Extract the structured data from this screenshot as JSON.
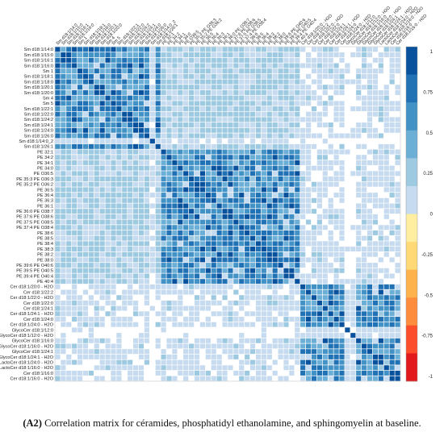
{
  "chart_data": {
    "type": "heatmap",
    "title": "",
    "labels": [
      "Sm d18:1/14:0",
      "Sm d18:1/15:0",
      "Sm d18:1/16:1",
      "Sm d18:1/16:0",
      "Sm 1",
      "Sm d18:1/18:1",
      "Sm d18:1/18:0",
      "Sm d18:1/20:1",
      "Sm d18:1/20:0",
      "Sm 4",
      "Sm 5",
      "Sm d18:1/22:1",
      "Sm d18:1/22:0",
      "Sm d18:1/24:2",
      "Sm d18:1/24:1",
      "Sm d18:1/24:0",
      "Sm d18:1/26:0",
      "Sm d18:1/14:0_2",
      "Sm d18:1/26:1",
      "PE 32:1",
      "PE 34:2",
      "PE 34:1",
      "PE 34:0",
      "PE O36:5",
      "PE 35:3 PE O36:3",
      "PE 35:2 PE O36:2",
      "PE 36:5",
      "PE 36:4",
      "PE 36:3",
      "PE 36:1",
      "PE 36:0 PE O38:7",
      "PE 37:6 PE O38:6",
      "PE 37:5 PE O38:5",
      "PE 37:4 PE O38:4",
      "PE 38:6",
      "PE 38:5",
      "PE 38:4",
      "PE 38:3",
      "PE 38:2",
      "PE 38:0",
      "PE 39:6 PE O40:6",
      "PE 39:5 PE O40:5",
      "PE 39:4 PE O40:4",
      "PE 40:4",
      "Cer d18:1/20:0 - H2O",
      "Cer d18:1/22:2",
      "Cer d18:1/22:0 - H2O",
      "Cer d18:1/22:0",
      "Cer d18:1/24:1",
      "Cer d18:1/24:1 - H2O",
      "Cer d18:1/24:0",
      "Cer d18:1/24:0 - H2O",
      "GlycoCer d18:1/12:0",
      "GlycoCer d18:1/12:0 - H2O",
      "GlycoCer d18:1/16:0",
      "GlycoCer d18:1/16:0 - H2O",
      "GlycoCer d18:1/24:1",
      "GlycoCer d18:1/24:1 - H2O",
      "LactoCer d18:1/24:0 - H2O",
      "LactoCer d18:1/16:0 - H2O",
      "Cer d18:1/16:0",
      "Cer d18:1/16:0 - H2O"
    ],
    "blocks": [
      {
        "name": "Sm",
        "start": 0,
        "end": 18
      },
      {
        "name": "PE",
        "start": 19,
        "end": 43
      },
      {
        "name": "Cer/GlycoCer",
        "start": 44,
        "end": 61
      }
    ],
    "values": "computed pseudo-pattern of pairwise correlations: strong positive within lipid classes, weak between classes",
    "colorbar": {
      "ticks": [
        "1",
        "0.75",
        "0.5",
        "0.25",
        "0",
        "-0.25",
        "-0.5",
        "-0.75",
        "-1"
      ],
      "colors": [
        "#08519c",
        "#2171b5",
        "#4292c6",
        "#6baed6",
        "#9ecae1",
        "#c6dbef",
        "#ffeda0",
        "#fed976",
        "#feb24c",
        "#fd8d3c",
        "#fc4e2a",
        "#e31a1c"
      ]
    }
  },
  "caption": {
    "tag": "(A2)",
    "text": " Correlation matrix for céramides, phosphatidyl ethanolamine, and sphingomyelin at baseline."
  }
}
